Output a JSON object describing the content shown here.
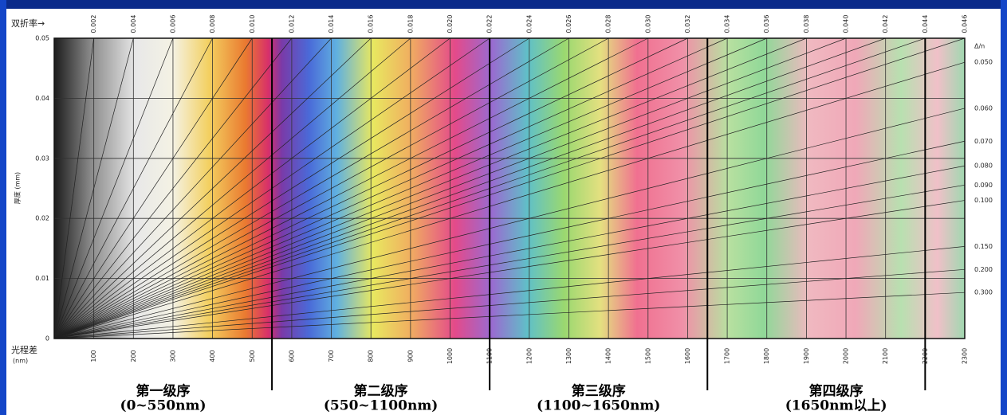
{
  "top_axis": {
    "label": "双折率→",
    "ticks": [
      0.002,
      0.004,
      0.006,
      0.008,
      {
        "value": 0.01,
        "label": "0.010"
      },
      0.012,
      0.014,
      0.016,
      0.018,
      {
        "value": 0.02,
        "label": "0.020"
      },
      0.022,
      0.024,
      0.026,
      0.028,
      {
        "value": 0.03,
        "label": "0.030"
      },
      0.032,
      0.034,
      0.036,
      0.038,
      {
        "value": 0.04,
        "label": "0.040"
      },
      0.042,
      0.044,
      0.046
    ]
  },
  "left_axis": {
    "label": "厚度 (mm)",
    "ticks": [
      0,
      0.01,
      0.02,
      0.03,
      0.04,
      0.05
    ],
    "ylim": [
      0,
      0.05
    ]
  },
  "bottom_axis": {
    "label": "光程差",
    "unit": "(nm)",
    "xlim": [
      0,
      2300
    ],
    "ticks": [
      100,
      200,
      300,
      400,
      500,
      600,
      700,
      800,
      900,
      1000,
      1100,
      1200,
      1300,
      1400,
      1500,
      1600,
      1700,
      1800,
      1900,
      2000,
      2100,
      2200,
      2300
    ]
  },
  "right_axis": {
    "label": "Δ/n",
    "ticks": [
      {
        "value": 0.05,
        "label": "0.050"
      },
      {
        "value": 0.06,
        "label": "0.060"
      },
      {
        "value": 0.07,
        "label": "0.070"
      },
      {
        "value": 0.08,
        "label": "0.080"
      },
      {
        "value": 0.09,
        "label": "0.090"
      },
      {
        "value": 0.1,
        "label": "0.100"
      },
      {
        "value": 0.15,
        "label": "0.150"
      },
      {
        "value": 0.2,
        "label": "0.200"
      },
      {
        "value": 0.3,
        "label": "0.300"
      }
    ]
  },
  "orders": [
    {
      "name": "第一级序",
      "range": "(0~550nm)",
      "end": 550
    },
    {
      "name": "第二级序",
      "range": "(550~1100nm)",
      "end": 1100
    },
    {
      "name": "第三级序",
      "range": "(1100~1650nm)",
      "end": 1650
    },
    {
      "name": "第四级序",
      "range": "(1650nm以上)",
      "end": 2200
    }
  ]
}
